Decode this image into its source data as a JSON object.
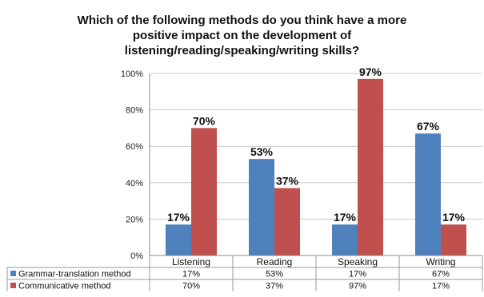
{
  "chart_data": {
    "type": "bar",
    "title_lines": [
      "Which of the following methods do you think have a more",
      "positive impact on the development of",
      "listening/reading/speaking/writing skills?"
    ],
    "categories": [
      "Listening",
      "Reading",
      "Speaking",
      "Writing"
    ],
    "series": [
      {
        "name": "Grammar-translation method",
        "values": [
          17,
          53,
          17,
          67
        ],
        "labels": [
          "17%",
          "53%",
          "17%",
          "67%"
        ],
        "color": "#4F81BD"
      },
      {
        "name": "Communicative method",
        "values": [
          70,
          37,
          97,
          17
        ],
        "labels": [
          "70%",
          "37%",
          "97%",
          "17%"
        ],
        "color": "#C0504D"
      }
    ],
    "ylim": [
      0,
      100
    ],
    "yticks": [
      "0%",
      "20%",
      "40%",
      "60%",
      "80%",
      "100%"
    ],
    "ytick_values": [
      0,
      20,
      40,
      60,
      80,
      100
    ],
    "grid": true,
    "legend": "data-table-below"
  }
}
